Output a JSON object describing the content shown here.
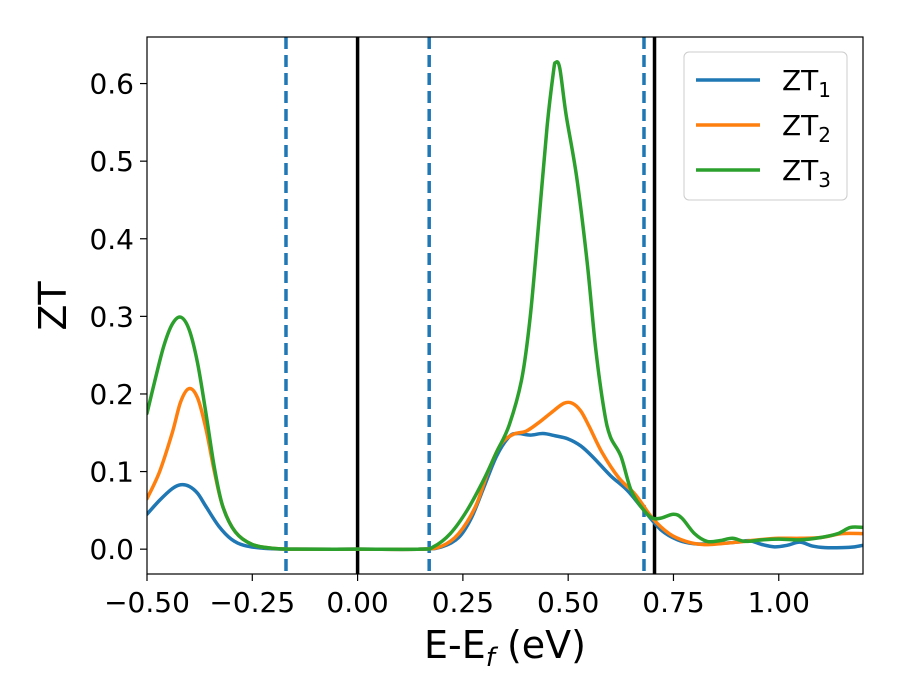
{
  "chart_data": {
    "type": "line",
    "xlabel": "E-E",
    "xlabel_sub": "f",
    "xlabel_unit": " (eV)",
    "ylabel": "ZT",
    "xlim": [
      -0.5,
      1.2
    ],
    "ylim": [
      -0.032,
      0.66
    ],
    "x_ticks": [
      -0.5,
      -0.25,
      0.0,
      0.25,
      0.5,
      0.75,
      1.0
    ],
    "x_tick_labels": [
      "−0.50",
      "−0.25",
      "0.00",
      "0.25",
      "0.50",
      "0.75",
      "1.00"
    ],
    "y_ticks": [
      0.0,
      0.1,
      0.2,
      0.3,
      0.4,
      0.5,
      0.6
    ],
    "y_tick_labels": [
      "0.0",
      "0.1",
      "0.2",
      "0.3",
      "0.4",
      "0.5",
      "0.6"
    ],
    "grid": false,
    "legend_position": "top-right",
    "vertical_lines": [
      {
        "x": -0.17,
        "style": "dashed",
        "color": "#1f77b4"
      },
      {
        "x": 0.0,
        "style": "solid",
        "color": "#000000"
      },
      {
        "x": 0.17,
        "style": "dashed",
        "color": "#1f77b4"
      },
      {
        "x": 0.68,
        "style": "dashed",
        "color": "#1f77b4"
      },
      {
        "x": 0.705,
        "style": "solid",
        "color": "#000000"
      }
    ],
    "series": [
      {
        "name": "ZT",
        "sub": "1",
        "color": "#1f77b4",
        "points": [
          [
            -0.5,
            0.045
          ],
          [
            -0.47,
            0.063
          ],
          [
            -0.44,
            0.078
          ],
          [
            -0.42,
            0.083
          ],
          [
            -0.4,
            0.081
          ],
          [
            -0.38,
            0.072
          ],
          [
            -0.36,
            0.055
          ],
          [
            -0.33,
            0.03
          ],
          [
            -0.3,
            0.013
          ],
          [
            -0.27,
            0.005
          ],
          [
            -0.22,
            0.001
          ],
          [
            -0.15,
            0.0
          ],
          [
            0.0,
            0.0
          ],
          [
            0.15,
            0.0
          ],
          [
            0.2,
            0.003
          ],
          [
            0.24,
            0.015
          ],
          [
            0.27,
            0.04
          ],
          [
            0.3,
            0.08
          ],
          [
            0.33,
            0.12
          ],
          [
            0.36,
            0.145
          ],
          [
            0.38,
            0.149
          ],
          [
            0.41,
            0.147
          ],
          [
            0.44,
            0.149
          ],
          [
            0.47,
            0.146
          ],
          [
            0.5,
            0.142
          ],
          [
            0.53,
            0.133
          ],
          [
            0.56,
            0.118
          ],
          [
            0.6,
            0.095
          ],
          [
            0.64,
            0.076
          ],
          [
            0.68,
            0.05
          ],
          [
            0.72,
            0.025
          ],
          [
            0.76,
            0.012
          ],
          [
            0.8,
            0.007
          ],
          [
            0.85,
            0.007
          ],
          [
            0.9,
            0.009
          ],
          [
            0.93,
            0.011
          ],
          [
            0.96,
            0.006
          ],
          [
            0.99,
            0.003
          ],
          [
            1.02,
            0.005
          ],
          [
            1.05,
            0.009
          ],
          [
            1.08,
            0.004
          ],
          [
            1.11,
            0.002
          ],
          [
            1.15,
            0.002
          ],
          [
            1.18,
            0.003
          ],
          [
            1.2,
            0.005
          ]
        ]
      },
      {
        "name": "ZT",
        "sub": "2",
        "color": "#ff7f0e",
        "points": [
          [
            -0.5,
            0.065
          ],
          [
            -0.47,
            0.1
          ],
          [
            -0.44,
            0.15
          ],
          [
            -0.42,
            0.19
          ],
          [
            -0.4,
            0.207
          ],
          [
            -0.38,
            0.195
          ],
          [
            -0.36,
            0.155
          ],
          [
            -0.34,
            0.1
          ],
          [
            -0.32,
            0.055
          ],
          [
            -0.29,
            0.022
          ],
          [
            -0.25,
            0.006
          ],
          [
            -0.2,
            0.001
          ],
          [
            -0.15,
            0.0
          ],
          [
            0.0,
            0.0
          ],
          [
            0.15,
            0.0
          ],
          [
            0.2,
            0.004
          ],
          [
            0.24,
            0.02
          ],
          [
            0.28,
            0.055
          ],
          [
            0.31,
            0.1
          ],
          [
            0.34,
            0.135
          ],
          [
            0.37,
            0.148
          ],
          [
            0.4,
            0.152
          ],
          [
            0.43,
            0.163
          ],
          [
            0.46,
            0.176
          ],
          [
            0.49,
            0.188
          ],
          [
            0.51,
            0.188
          ],
          [
            0.53,
            0.178
          ],
          [
            0.55,
            0.158
          ],
          [
            0.58,
            0.125
          ],
          [
            0.62,
            0.092
          ],
          [
            0.66,
            0.07
          ],
          [
            0.7,
            0.04
          ],
          [
            0.74,
            0.02
          ],
          [
            0.78,
            0.01
          ],
          [
            0.82,
            0.006
          ],
          [
            0.86,
            0.007
          ],
          [
            0.9,
            0.009
          ],
          [
            0.95,
            0.012
          ],
          [
            1.0,
            0.014
          ],
          [
            1.05,
            0.014
          ],
          [
            1.1,
            0.015
          ],
          [
            1.15,
            0.02
          ],
          [
            1.2,
            0.02
          ]
        ]
      },
      {
        "name": "ZT",
        "sub": "3",
        "color": "#2ca02c",
        "points": [
          [
            -0.5,
            0.175
          ],
          [
            -0.48,
            0.22
          ],
          [
            -0.46,
            0.262
          ],
          [
            -0.44,
            0.29
          ],
          [
            -0.42,
            0.299
          ],
          [
            -0.4,
            0.283
          ],
          [
            -0.38,
            0.24
          ],
          [
            -0.36,
            0.175
          ],
          [
            -0.34,
            0.105
          ],
          [
            -0.32,
            0.055
          ],
          [
            -0.29,
            0.022
          ],
          [
            -0.25,
            0.006
          ],
          [
            -0.2,
            0.001
          ],
          [
            -0.15,
            0.0
          ],
          [
            0.0,
            0.0
          ],
          [
            0.15,
            0.0
          ],
          [
            0.18,
            0.003
          ],
          [
            0.22,
            0.02
          ],
          [
            0.26,
            0.05
          ],
          [
            0.3,
            0.09
          ],
          [
            0.33,
            0.125
          ],
          [
            0.36,
            0.16
          ],
          [
            0.39,
            0.22
          ],
          [
            0.41,
            0.3
          ],
          [
            0.43,
            0.42
          ],
          [
            0.45,
            0.545
          ],
          [
            0.465,
            0.615
          ],
          [
            0.47,
            0.627
          ],
          [
            0.48,
            0.62
          ],
          [
            0.495,
            0.56
          ],
          [
            0.52,
            0.48
          ],
          [
            0.545,
            0.37
          ],
          [
            0.565,
            0.26
          ],
          [
            0.585,
            0.18
          ],
          [
            0.6,
            0.145
          ],
          [
            0.625,
            0.12
          ],
          [
            0.65,
            0.075
          ],
          [
            0.68,
            0.05
          ],
          [
            0.7,
            0.04
          ],
          [
            0.72,
            0.04
          ],
          [
            0.75,
            0.045
          ],
          [
            0.77,
            0.04
          ],
          [
            0.8,
            0.02
          ],
          [
            0.83,
            0.01
          ],
          [
            0.86,
            0.011
          ],
          [
            0.89,
            0.014
          ],
          [
            0.92,
            0.01
          ],
          [
            0.96,
            0.012
          ],
          [
            1.0,
            0.013
          ],
          [
            1.05,
            0.012
          ],
          [
            1.1,
            0.015
          ],
          [
            1.14,
            0.02
          ],
          [
            1.17,
            0.028
          ],
          [
            1.2,
            0.028
          ]
        ]
      }
    ]
  }
}
